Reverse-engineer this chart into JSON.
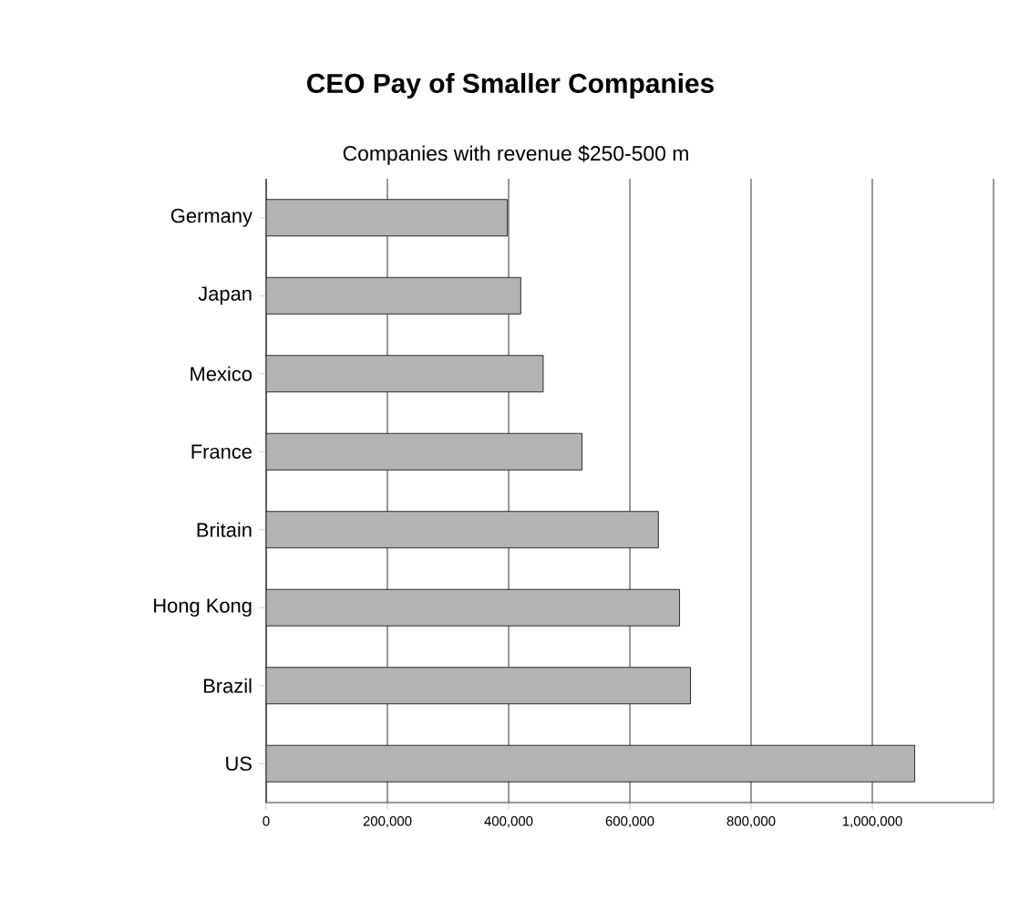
{
  "chart_data": {
    "type": "bar",
    "orientation": "horizontal",
    "title": "CEO Pay of Smaller Companies",
    "subtitle": "Companies with revenue $250-500 m",
    "categories": [
      "Germany",
      "Japan",
      "Mexico",
      "France",
      "Britain",
      "Hong Kong",
      "Brazil",
      "US"
    ],
    "values": [
      398000,
      420000,
      457000,
      521000,
      647000,
      682000,
      700000,
      1070000
    ],
    "color": "#b3b3b3",
    "xlim": [
      0,
      1200000
    ],
    "xticks": [
      {
        "value": 0,
        "label": "0"
      },
      {
        "value": 200000,
        "label": "200,000"
      },
      {
        "value": 400000,
        "label": "400,000"
      },
      {
        "value": 600000,
        "label": "600,000"
      },
      {
        "value": 800000,
        "label": "800,000"
      },
      {
        "value": 1000000,
        "label": "1,000,000"
      },
      {
        "value": 1200000,
        "label": null
      }
    ],
    "grid": "x"
  }
}
